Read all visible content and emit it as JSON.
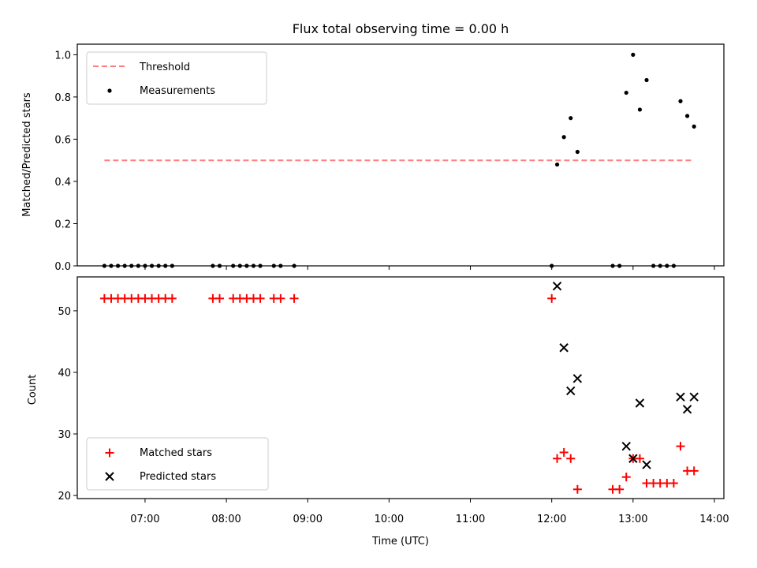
{
  "chart_data": [
    {
      "type": "scatter",
      "title": "Flux total observing time = 0.00 h",
      "xlabel": "",
      "ylabel": "Matched/Predicted stars",
      "xlim": [
        "06:10",
        "14:07"
      ],
      "ylim": [
        0,
        1.05
      ],
      "yticks": [
        0.0,
        0.2,
        0.4,
        0.6,
        0.8,
        1.0
      ],
      "ytick_labels": [
        "0.0",
        "0.2",
        "0.4",
        "0.6",
        "0.8",
        "1.0"
      ],
      "legend_position": "upper-left",
      "series": [
        {
          "name": "Threshold",
          "type": "line",
          "style": "dashed",
          "color": "#ff7f7f",
          "x": [
            "06:30",
            "13:45"
          ],
          "y": [
            0.5,
            0.5
          ]
        },
        {
          "name": "Measurements",
          "type": "scatter",
          "marker": "dot",
          "color": "#000000",
          "x": [
            "06:30",
            "06:35",
            "06:40",
            "06:45",
            "06:50",
            "06:55",
            "07:00",
            "07:05",
            "07:10",
            "07:15",
            "07:20",
            "07:50",
            "07:55",
            "08:05",
            "08:10",
            "08:15",
            "08:20",
            "08:25",
            "08:35",
            "08:40",
            "08:50",
            "12:00",
            "12:04",
            "12:09",
            "12:14",
            "12:19",
            "12:45",
            "12:50",
            "12:55",
            "13:00",
            "13:05",
            "13:10",
            "13:15",
            "13:20",
            "13:25",
            "13:30",
            "13:35",
            "13:40",
            "13:45"
          ],
          "y": [
            0,
            0,
            0,
            0,
            0,
            0,
            0,
            0,
            0,
            0,
            0,
            0,
            0,
            0,
            0,
            0,
            0,
            0,
            0,
            0,
            0,
            0,
            0.48,
            0.61,
            0.7,
            0.54,
            0,
            0,
            0.82,
            1.0,
            0.74,
            0.88,
            0,
            0,
            0,
            0,
            0.78,
            0.71,
            0.66
          ]
        }
      ]
    },
    {
      "type": "scatter",
      "title": "",
      "xlabel": "Time (UTC)",
      "ylabel": "Count",
      "xlim": [
        "06:10",
        "14:07"
      ],
      "ylim": [
        19.5,
        55.5
      ],
      "yticks": [
        20,
        30,
        40,
        50
      ],
      "ytick_labels": [
        "20",
        "30",
        "40",
        "50"
      ],
      "xticks": [
        "07:00",
        "08:00",
        "09:00",
        "10:00",
        "11:00",
        "12:00",
        "13:00",
        "14:00"
      ],
      "xtick_labels": [
        "07:00",
        "08:00",
        "09:00",
        "10:00",
        "11:00",
        "12:00",
        "13:00",
        "14:00"
      ],
      "legend_position": "lower-left",
      "series": [
        {
          "name": "Matched stars",
          "marker": "plus",
          "color": "#ff0000",
          "x": [
            "06:30",
            "06:35",
            "06:40",
            "06:45",
            "06:50",
            "06:55",
            "07:00",
            "07:05",
            "07:10",
            "07:15",
            "07:20",
            "07:50",
            "07:55",
            "08:05",
            "08:10",
            "08:15",
            "08:20",
            "08:25",
            "08:35",
            "08:40",
            "08:50",
            "12:00",
            "12:04",
            "12:09",
            "12:14",
            "12:19",
            "12:45",
            "12:50",
            "12:55",
            "13:00",
            "13:05",
            "13:10",
            "13:15",
            "13:20",
            "13:25",
            "13:30",
            "13:35",
            "13:40",
            "13:45"
          ],
          "y": [
            52,
            52,
            52,
            52,
            52,
            52,
            52,
            52,
            52,
            52,
            52,
            52,
            52,
            52,
            52,
            52,
            52,
            52,
            52,
            52,
            52,
            52,
            26,
            27,
            26,
            21,
            21,
            21,
            23,
            26,
            26,
            22,
            22,
            22,
            22,
            22,
            28,
            24,
            24
          ]
        },
        {
          "name": "Predicted stars",
          "marker": "x",
          "color": "#000000",
          "x": [
            "12:04",
            "12:09",
            "12:14",
            "12:19",
            "12:55",
            "13:00",
            "13:05",
            "13:10",
            "13:35",
            "13:40",
            "13:45"
          ],
          "y": [
            54,
            44,
            37,
            39,
            28,
            26,
            35,
            25,
            36,
            34,
            36
          ]
        }
      ]
    }
  ]
}
